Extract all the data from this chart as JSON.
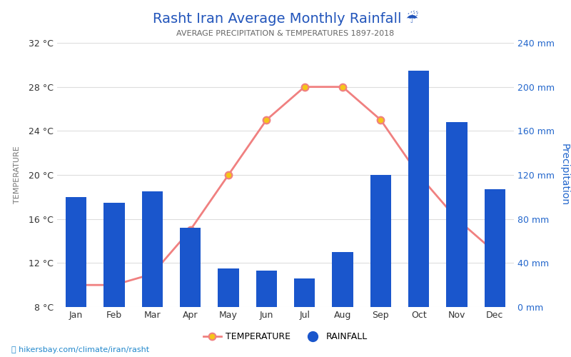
{
  "title": "Rasht Iran Average Monthly Rainfall ☔",
  "subtitle": "AVERAGE PRECIPITATION & TEMPERATURES 1897-2018",
  "months": [
    "Jan",
    "Feb",
    "Mar",
    "Apr",
    "May",
    "Jun",
    "Jul",
    "Aug",
    "Sep",
    "Oct",
    "Nov",
    "Dec"
  ],
  "rainfall_mm": [
    100,
    95,
    105,
    72,
    35,
    33,
    26,
    50,
    120,
    215,
    168,
    107
  ],
  "temperature_c": [
    10,
    10,
    11,
    15,
    20,
    25,
    28,
    28,
    25,
    20,
    16,
    13
  ],
  "temp_ylim": [
    8,
    32
  ],
  "temp_yticks": [
    8,
    12,
    16,
    20,
    24,
    28,
    32
  ],
  "rain_ylim": [
    0,
    240
  ],
  "rain_yticks": [
    0,
    40,
    80,
    120,
    160,
    200,
    240
  ],
  "bar_color": "#1a56cc",
  "line_color": "#f08080",
  "marker_face": "#f5c518",
  "marker_edge": "#f08080",
  "title_color": "#2255bb",
  "subtitle_color": "#666666",
  "axis_label_left": "TEMPERATURE",
  "axis_label_right": "Precipitation",
  "right_tick_color": "#2266cc",
  "background_color": "#ffffff",
  "watermark": "hikersbay.com/climate/iran/rasht",
  "legend_temp_label": "TEMPERATURE",
  "legend_rain_label": "RAINFALL",
  "grid_color": "#dddddd"
}
